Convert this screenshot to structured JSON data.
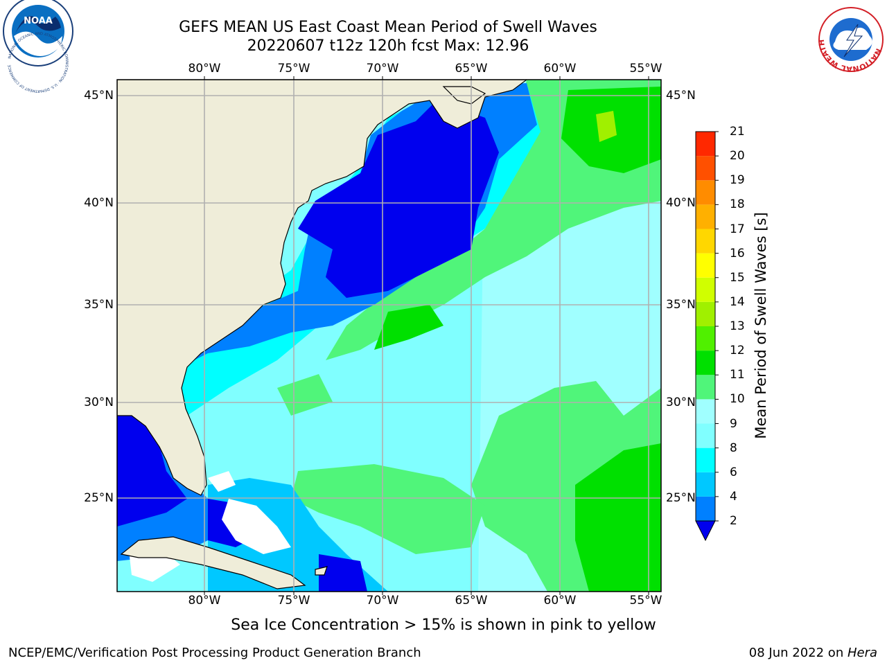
{
  "title": {
    "line1": "GEFS MEAN US East Coast Mean Period of Swell Waves",
    "line2": "20220607 t12z 120h fcst   Max: 12.96"
  },
  "map": {
    "longitudes": [
      "80°W",
      "75°W",
      "70°W",
      "65°W",
      "60°W",
      "55°W"
    ],
    "latitudes": [
      "45°N",
      "40°N",
      "35°N",
      "30°N",
      "25°N"
    ],
    "colors": {
      "land": "#efedd9",
      "grid": "#b0b0b0",
      "sea_ice_mask": "#ffffff"
    }
  },
  "colorbar": {
    "title": "Mean Period of Swell Waves [s]",
    "ticks": [
      "2",
      "4",
      "6",
      "8",
      "9",
      "10",
      "11",
      "12",
      "13",
      "14",
      "15",
      "16",
      "17",
      "18",
      "19",
      "20",
      "21"
    ],
    "colors": [
      "#0000ee",
      "#0080ff",
      "#00c8ff",
      "#00ffff",
      "#80ffff",
      "#a0ffff",
      "#50f57a",
      "#00e000",
      "#50f000",
      "#a0f000",
      "#d0ff00",
      "#ffff00",
      "#ffd700",
      "#ffb000",
      "#ff8c00",
      "#ff5000",
      "#ff2800",
      "#ff0000"
    ]
  },
  "notes": {
    "sea_ice": "Sea Ice Concentration > 15% is shown in pink to yellow"
  },
  "footer": {
    "left": "NCEP/EMC/Verification Post Processing Product Generation Branch",
    "date": "08 Jun 2022 on ",
    "machine": "Hera"
  },
  "logos": {
    "noaa": "NOAA",
    "noaa_ring": "NATIONAL OCEANIC AND ATMOSPHERIC ADMINISTRATION · U.S. DEPARTMENT OF COMMERCE",
    "nws_ring": "NATIONAL WEATHER SERVICE"
  }
}
